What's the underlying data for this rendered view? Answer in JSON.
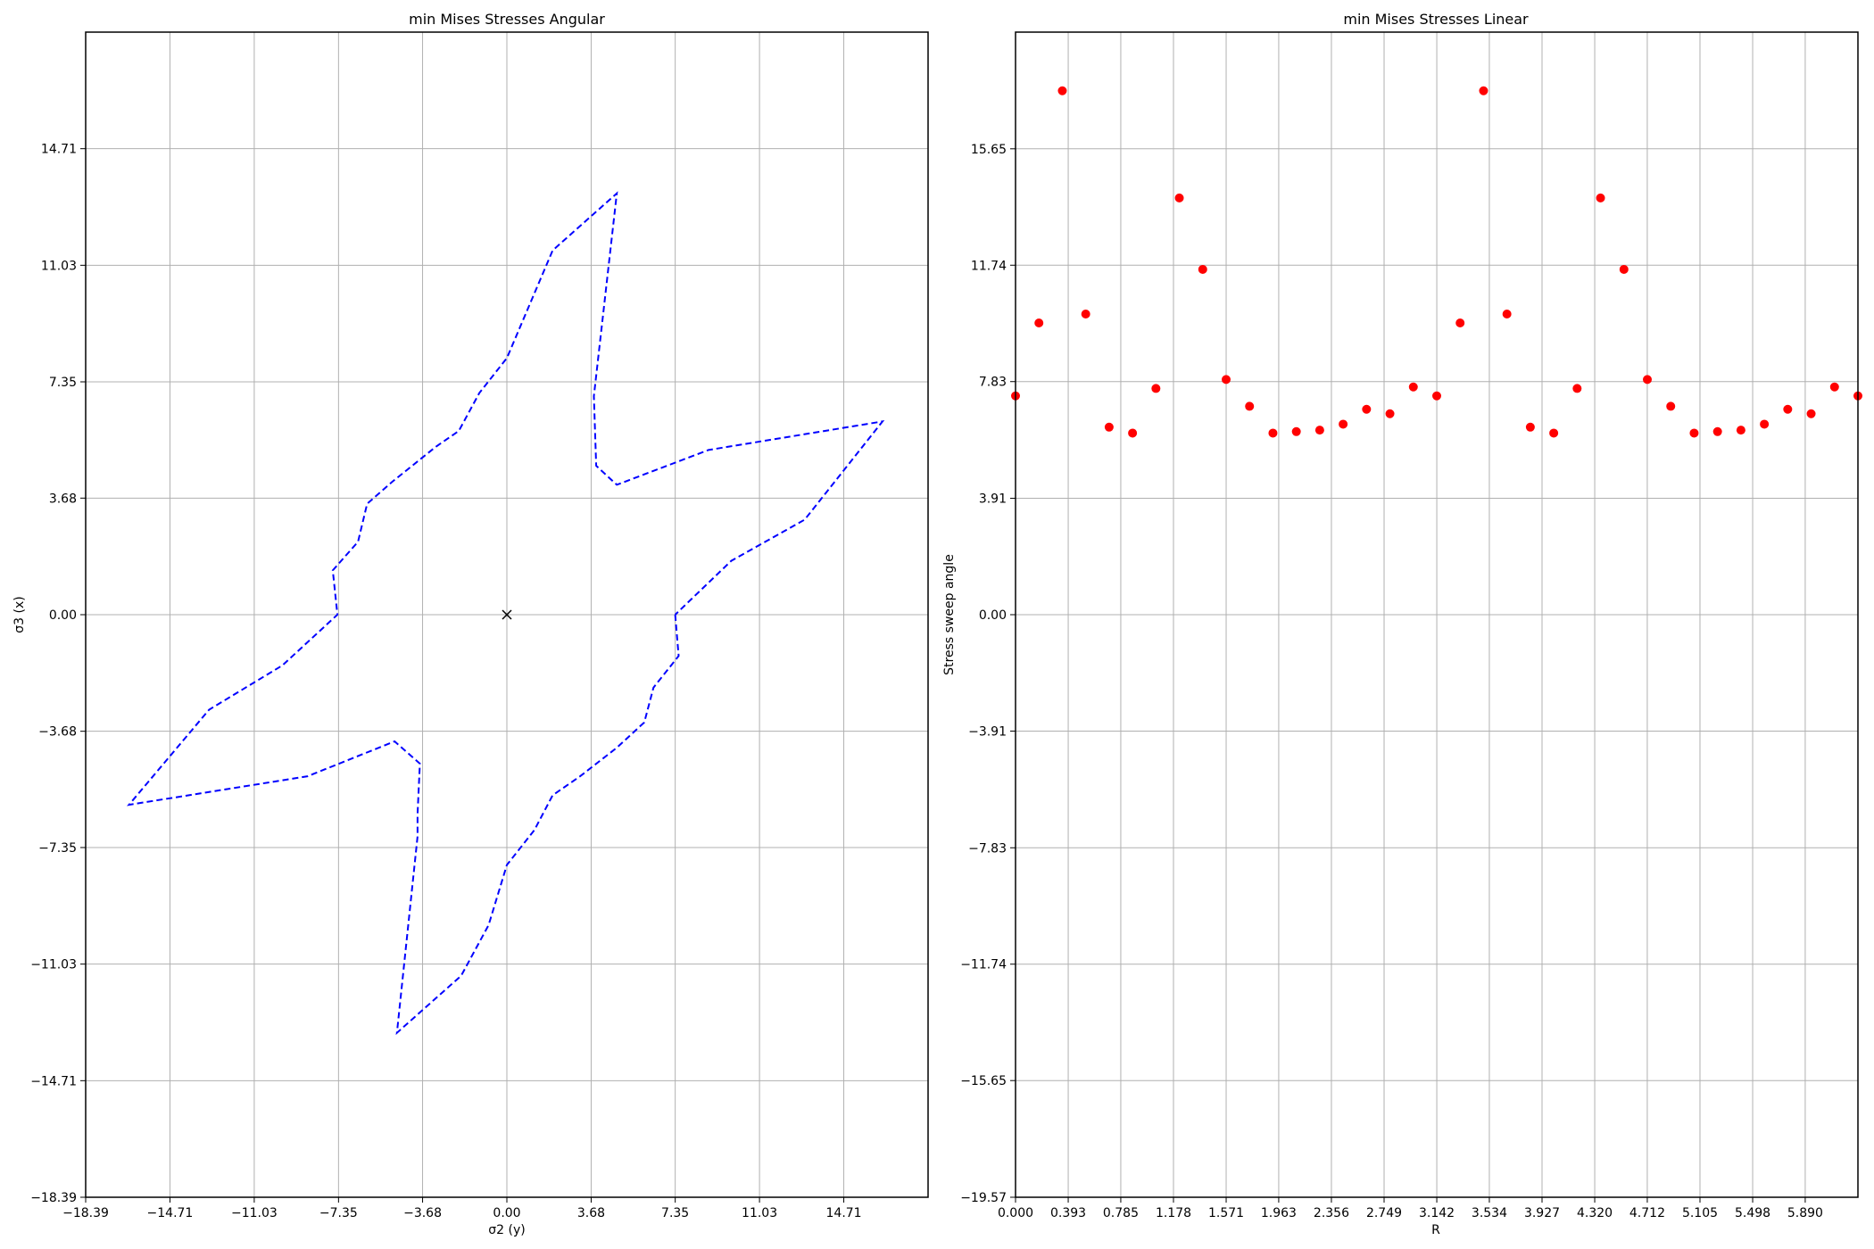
{
  "chart_data": [
    {
      "type": "line",
      "title": "min Mises Stresses Angular",
      "xlabel": "σ2 (y)",
      "ylabel": "σ3 (x)",
      "xlim": [
        -18.39,
        18.39
      ],
      "ylim": [
        -18.39,
        18.39
      ],
      "xticks": [
        "−18.39",
        "−14.71",
        "−11.03",
        "−7.35",
        "−3.68",
        "0.00",
        "3.68",
        "7.35",
        "11.03",
        "14.71"
      ],
      "yticks": [
        "−18.39",
        "−14.71",
        "−11.03",
        "−7.35",
        "−3.68",
        "0.00",
        "3.68",
        "7.35",
        "11.03",
        "14.71"
      ],
      "grid": true,
      "series": [
        {
          "color": "#0000ff",
          "style": "dashed",
          "x": [
            7.35,
            7.5,
            6.4,
            6.0,
            4.8,
            3.2,
            2.0,
            1.2,
            0.0,
            -0.8,
            -2.0,
            -4.8,
            -3.9,
            -3.9,
            -3.8,
            -4.9,
            -8.7,
            -16.5,
            -13.0,
            -9.8,
            -7.4,
            -7.6,
            -6.5,
            -6.1,
            -5.0,
            -3.1,
            -2.1,
            -1.2,
            0.0,
            2.0,
            4.8,
            3.8,
            3.9,
            4.8,
            8.8,
            16.4,
            13.0,
            9.8,
            7.35
          ],
          "y": [
            0.0,
            -1.3,
            -2.3,
            -3.4,
            -4.2,
            -5.1,
            -5.7,
            -6.8,
            -7.9,
            -9.8,
            -11.4,
            -13.2,
            -7.0,
            -6.3,
            -4.7,
            -4.0,
            -5.1,
            -6.0,
            -3.0,
            -1.6,
            0.0,
            1.4,
            2.3,
            3.5,
            4.2,
            5.3,
            5.8,
            7.0,
            8.1,
            11.5,
            13.3,
            6.9,
            4.7,
            4.1,
            5.2,
            6.1,
            3.0,
            1.7,
            0.0
          ]
        }
      ],
      "center_marker": {
        "x": 0.0,
        "y": 0.0,
        "symbol": "×",
        "color": "#000000"
      }
    },
    {
      "type": "scatter",
      "title": "min Mises Stresses Linear",
      "xlabel": "R",
      "ylabel": "Stress sweep angle",
      "xlim": [
        0.0,
        6.2832
      ],
      "ylim": [
        -19.57,
        19.57
      ],
      "xticks": [
        "0.000",
        "0.393",
        "0.785",
        "1.178",
        "1.571",
        "1.963",
        "2.356",
        "2.749",
        "3.142",
        "3.534",
        "3.927",
        "4.320",
        "4.712",
        "5.105",
        "5.498",
        "5.890"
      ],
      "yticks": [
        "−19.57",
        "−15.65",
        "−11.74",
        "−7.83",
        "−3.91",
        "0.00",
        "3.91",
        "7.83",
        "11.74",
        "15.65"
      ],
      "grid": true,
      "series": [
        {
          "color": "#ff0000",
          "x": [
            0.0,
            0.1745,
            0.3491,
            0.5236,
            0.6981,
            0.8727,
            1.0472,
            1.2217,
            1.3963,
            1.5708,
            1.7453,
            1.9199,
            2.0944,
            2.2689,
            2.4435,
            2.618,
            2.7925,
            2.9671,
            3.1416,
            3.3161,
            3.4907,
            3.6652,
            3.8397,
            4.0143,
            4.1888,
            4.3633,
            4.5379,
            4.7124,
            4.8869,
            5.0615,
            5.236,
            5.4105,
            5.5851,
            5.7596,
            5.9341,
            6.1087,
            6.2832
          ],
          "y": [
            7.35,
            9.8,
            17.6,
            10.1,
            6.3,
            6.1,
            7.6,
            14.0,
            11.6,
            7.9,
            7.0,
            6.1,
            6.15,
            6.2,
            6.4,
            6.9,
            6.75,
            7.65,
            7.35,
            9.8,
            17.6,
            10.1,
            6.3,
            6.1,
            7.6,
            14.0,
            11.6,
            7.9,
            7.0,
            6.1,
            6.15,
            6.2,
            6.4,
            6.9,
            6.75,
            7.65,
            7.35
          ]
        }
      ]
    }
  ]
}
